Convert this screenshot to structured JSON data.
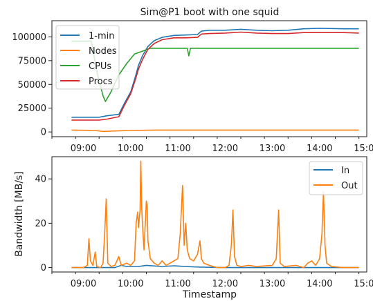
{
  "chart_data": [
    {
      "type": "line",
      "title": "Sim@P1 boot with one squid",
      "xlabel": "",
      "ylabel": "",
      "xlim": [
        "08:20",
        "15:00"
      ],
      "ylim": [
        -5000,
        117000
      ],
      "x_tick_labels": [
        "09:00",
        "10:00",
        "11:00",
        "12:00",
        "13:00",
        "14:00",
        "15:00"
      ],
      "y_ticks": [
        0,
        25000,
        50000,
        75000,
        100000
      ],
      "y_tick_labels": [
        "0",
        "25000",
        "50000",
        "75000",
        "100000"
      ],
      "legend_position": "upper-left",
      "grid": false,
      "series": [
        {
          "name": "1-min",
          "color": "#1f77b4",
          "points": [
            [
              "08:45",
              15500
            ],
            [
              "09:20",
              15500
            ],
            [
              "09:30",
              17000
            ],
            [
              "09:45",
              18500
            ],
            [
              "09:52",
              30000
            ],
            [
              "10:00",
              42000
            ],
            [
              "10:06",
              58000
            ],
            [
              "10:10",
              70000
            ],
            [
              "10:15",
              80000
            ],
            [
              "10:22",
              90000
            ],
            [
              "10:30",
              96000
            ],
            [
              "10:40",
              99500
            ],
            [
              "10:55",
              101500
            ],
            [
              "11:10",
              102000
            ],
            [
              "11:25",
              102500
            ],
            [
              "11:30",
              106000
            ],
            [
              "11:40",
              107000
            ],
            [
              "12:00",
              107000
            ],
            [
              "12:20",
              108000
            ],
            [
              "12:40",
              107000
            ],
            [
              "13:00",
              106500
            ],
            [
              "13:20",
              107000
            ],
            [
              "13:40",
              108500
            ],
            [
              "14:00",
              109000
            ],
            [
              "14:30",
              108500
            ],
            [
              "14:50",
              108500
            ]
          ]
        },
        {
          "name": "Nodes",
          "color": "#ff7f0e",
          "points": [
            [
              "08:45",
              2000
            ],
            [
              "09:15",
              1500
            ],
            [
              "09:25",
              500
            ],
            [
              "09:40",
              1000
            ],
            [
              "10:00",
              1500
            ],
            [
              "10:30",
              2000
            ],
            [
              "11:00",
              2000
            ],
            [
              "12:00",
              2000
            ],
            [
              "13:00",
              2000
            ],
            [
              "14:00",
              2000
            ],
            [
              "14:50",
              2000
            ]
          ]
        },
        {
          "name": "CPUs",
          "color": "#2ca02c",
          "points": [
            [
              "08:45",
              95500
            ],
            [
              "09:10",
              95500
            ],
            [
              "09:18",
              60000
            ],
            [
              "09:25",
              38000
            ],
            [
              "09:28",
              32000
            ],
            [
              "09:35",
              42000
            ],
            [
              "09:45",
              60000
            ],
            [
              "09:55",
              72000
            ],
            [
              "10:05",
              82000
            ],
            [
              "10:15",
              85000
            ],
            [
              "10:25",
              88000
            ],
            [
              "11:00",
              88000
            ],
            [
              "11:12",
              88000
            ],
            [
              "11:14",
              80000
            ],
            [
              "11:16",
              88000
            ],
            [
              "12:00",
              88000
            ],
            [
              "13:00",
              88000
            ],
            [
              "14:00",
              88000
            ],
            [
              "14:50",
              88000
            ]
          ]
        },
        {
          "name": "Procs",
          "color": "#d62728",
          "points": [
            [
              "08:45",
              12500
            ],
            [
              "09:20",
              12500
            ],
            [
              "09:30",
              13500
            ],
            [
              "09:45",
              16000
            ],
            [
              "09:52",
              28000
            ],
            [
              "10:00",
              40000
            ],
            [
              "10:06",
              55000
            ],
            [
              "10:10",
              66000
            ],
            [
              "10:15",
              76000
            ],
            [
              "10:22",
              87000
            ],
            [
              "10:30",
              93000
            ],
            [
              "10:40",
              97000
            ],
            [
              "10:55",
              99000
            ],
            [
              "11:10",
              99000
            ],
            [
              "11:25",
              99500
            ],
            [
              "11:30",
              103000
            ],
            [
              "11:40",
              103500
            ],
            [
              "12:00",
              104000
            ],
            [
              "12:20",
              105000
            ],
            [
              "12:40",
              104000
            ],
            [
              "13:00",
              103500
            ],
            [
              "13:20",
              103500
            ],
            [
              "13:40",
              104500
            ],
            [
              "14:00",
              104500
            ],
            [
              "14:30",
              104500
            ],
            [
              "14:50",
              104000
            ]
          ]
        }
      ]
    },
    {
      "type": "line",
      "title": "",
      "xlabel": "Timestamp",
      "ylabel": "Bandwidth [MB/s]",
      "xlim": [
        "08:20",
        "15:00"
      ],
      "ylim": [
        -2,
        50
      ],
      "x_tick_labels": [
        "09:00",
        "10:00",
        "11:00",
        "12:00",
        "13:00",
        "14:00",
        "15:00"
      ],
      "y_ticks": [
        0,
        20,
        40
      ],
      "y_tick_labels": [
        "0",
        "20",
        "40"
      ],
      "legend_position": "upper-right",
      "grid": false,
      "series": [
        {
          "name": "In",
          "color": "#1f77b4",
          "points": [
            [
              "08:45",
              0
            ],
            [
              "09:40",
              0
            ],
            [
              "09:48",
              1
            ],
            [
              "09:55",
              0.5
            ],
            [
              "10:10",
              0.5
            ],
            [
              "10:20",
              1
            ],
            [
              "10:40",
              0.5
            ],
            [
              "10:55",
              0.8
            ],
            [
              "11:10",
              0.5
            ],
            [
              "11:20",
              0.3
            ],
            [
              "11:30",
              0.2
            ],
            [
              "12:00",
              0
            ],
            [
              "14:50",
              0
            ]
          ]
        },
        {
          "name": "Out",
          "color": "#ff7f0e",
          "points": [
            [
              "08:45",
              0
            ],
            [
              "09:00",
              0
            ],
            [
              "09:05",
              1
            ],
            [
              "09:07",
              13
            ],
            [
              "09:09",
              3
            ],
            [
              "09:12",
              1
            ],
            [
              "09:15",
              7
            ],
            [
              "09:17",
              0.5
            ],
            [
              "09:22",
              0
            ],
            [
              "09:25",
              2
            ],
            [
              "09:27",
              15
            ],
            [
              "09:29",
              31
            ],
            [
              "09:31",
              2
            ],
            [
              "09:35",
              0.5
            ],
            [
              "09:40",
              1
            ],
            [
              "09:45",
              5
            ],
            [
              "09:48",
              1
            ],
            [
              "09:55",
              2
            ],
            [
              "10:00",
              1
            ],
            [
              "10:05",
              3
            ],
            [
              "10:07",
              20
            ],
            [
              "10:09",
              25
            ],
            [
              "10:10",
              18
            ],
            [
              "10:12",
              26
            ],
            [
              "10:13",
              48
            ],
            [
              "10:14",
              28
            ],
            [
              "10:15",
              20
            ],
            [
              "10:17",
              8
            ],
            [
              "10:20",
              30
            ],
            [
              "10:21",
              28
            ],
            [
              "10:22",
              12
            ],
            [
              "10:25",
              4
            ],
            [
              "10:30",
              2
            ],
            [
              "10:35",
              1
            ],
            [
              "10:40",
              3
            ],
            [
              "10:45",
              1
            ],
            [
              "10:50",
              2
            ],
            [
              "10:55",
              3
            ],
            [
              "11:00",
              4
            ],
            [
              "11:03",
              15
            ],
            [
              "11:06",
              37
            ],
            [
              "11:08",
              10
            ],
            [
              "11:10",
              20
            ],
            [
              "11:12",
              8
            ],
            [
              "11:15",
              4
            ],
            [
              "11:20",
              3
            ],
            [
              "11:25",
              6
            ],
            [
              "11:28",
              12
            ],
            [
              "11:30",
              4
            ],
            [
              "11:33",
              2
            ],
            [
              "11:40",
              1
            ],
            [
              "11:50",
              0
            ],
            [
              "12:00",
              0
            ],
            [
              "12:05",
              1
            ],
            [
              "12:08",
              10
            ],
            [
              "12:10",
              26
            ],
            [
              "12:12",
              5
            ],
            [
              "12:15",
              1
            ],
            [
              "12:20",
              0.5
            ],
            [
              "12:30",
              1
            ],
            [
              "12:40",
              0.5
            ],
            [
              "13:00",
              1
            ],
            [
              "13:05",
              4
            ],
            [
              "13:08",
              26
            ],
            [
              "13:10",
              2
            ],
            [
              "13:15",
              0.5
            ],
            [
              "13:30",
              1
            ],
            [
              "13:40",
              0
            ],
            [
              "13:45",
              2
            ],
            [
              "13:50",
              3
            ],
            [
              "13:55",
              1
            ],
            [
              "14:00",
              4
            ],
            [
              "14:03",
              15
            ],
            [
              "14:05",
              34
            ],
            [
              "14:07",
              10
            ],
            [
              "14:09",
              2
            ],
            [
              "14:15",
              0.5
            ],
            [
              "14:30",
              0
            ],
            [
              "14:50",
              0
            ]
          ]
        }
      ]
    }
  ]
}
